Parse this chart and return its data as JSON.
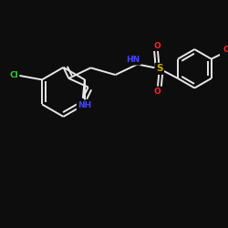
{
  "background": "#0d0d0d",
  "bond_color": "#e8e8e8",
  "bond_width": 1.4,
  "atom_colors": {
    "N": "#4444ff",
    "O": "#ff2222",
    "S": "#ccaa00",
    "Cl": "#33cc33"
  },
  "font_size": 6.5
}
